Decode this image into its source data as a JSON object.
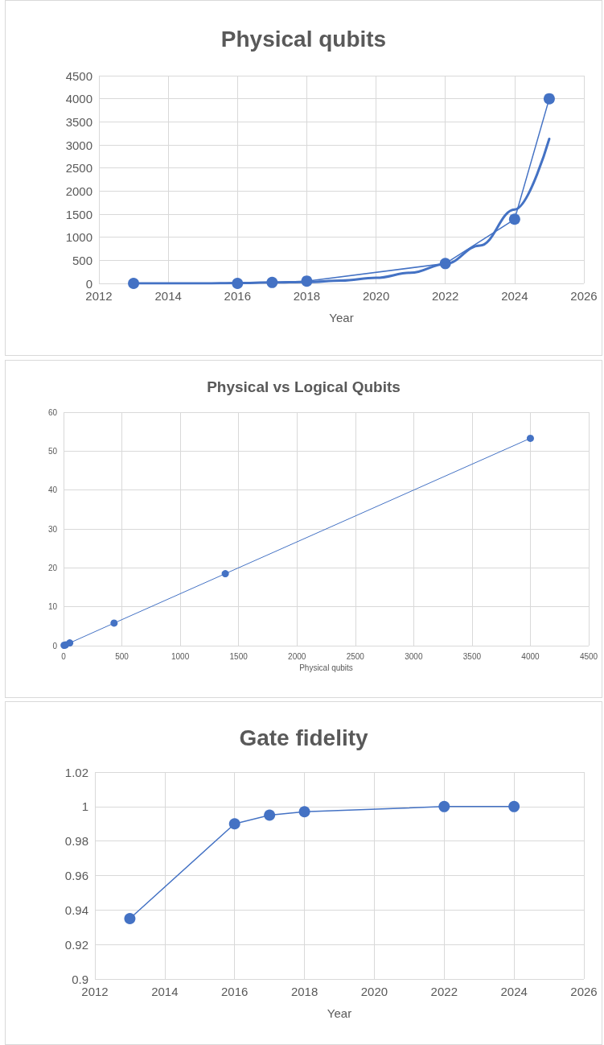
{
  "chart_data": [
    {
      "type": "line",
      "title": "Physical qubits",
      "xlabel": "Year",
      "xlim": [
        2012,
        2026
      ],
      "xticks": [
        2012,
        2014,
        2016,
        2018,
        2020,
        2022,
        2024,
        2026
      ],
      "ylim": [
        0,
        4500
      ],
      "yticks": [
        0,
        500,
        1000,
        1500,
        2000,
        2500,
        3000,
        3500,
        4000,
        4500
      ],
      "grid": true,
      "marker": "circle",
      "line_style": "solid",
      "series": [
        {
          "color": "#4472c4",
          "x": [
            2013,
            2016,
            2017,
            2018,
            2022,
            2024,
            2025
          ],
          "values": [
            0,
            0,
            20,
            50,
            430,
            1390,
            4000
          ]
        },
        {
          "color": "#4472c4",
          "marker": "none",
          "x": [
            2013,
            2014,
            2015,
            2016,
            2017,
            2018,
            2019,
            2020,
            2021,
            2022,
            2023,
            2024,
            2025
          ],
          "values": [
            0,
            0,
            0,
            10,
            20,
            30,
            60,
            120,
            230,
            420,
            820,
            1600,
            3130
          ]
        }
      ]
    },
    {
      "type": "line",
      "title": "Physical vs Logical Qubits",
      "xlabel": "Physical qubits",
      "xlim": [
        0,
        4500
      ],
      "xticks": [
        0,
        500,
        1000,
        1500,
        2000,
        2500,
        3000,
        3500,
        4000,
        4500
      ],
      "ylim": [
        0,
        60
      ],
      "yticks": [
        0,
        10,
        20,
        30,
        40,
        50,
        60
      ],
      "grid": true,
      "marker": "circle",
      "line_style": "solid",
      "series": [
        {
          "color": "#4472c4",
          "x": [
            5,
            17,
            53,
            433,
            1386,
            4000
          ],
          "values": [
            0.1,
            0.2,
            0.7,
            5.8,
            18.5,
            53.3
          ]
        }
      ]
    },
    {
      "type": "line",
      "title": "Gate fidelity",
      "xlabel": "Year",
      "xlim": [
        2012,
        2026
      ],
      "xticks": [
        2012,
        2014,
        2016,
        2018,
        2020,
        2022,
        2024,
        2026
      ],
      "ylim": [
        0.9,
        1.02
      ],
      "yticks": [
        0.9,
        0.92,
        0.94,
        0.96,
        0.98,
        1,
        1.02
      ],
      "grid": true,
      "marker": "circle",
      "line_style": "solid",
      "series": [
        {
          "color": "#4472c4",
          "x": [
            2013,
            2016,
            2017,
            2018,
            2022,
            2024
          ],
          "values": [
            0.935,
            0.99,
            0.995,
            0.997,
            1,
            1
          ]
        }
      ]
    }
  ]
}
